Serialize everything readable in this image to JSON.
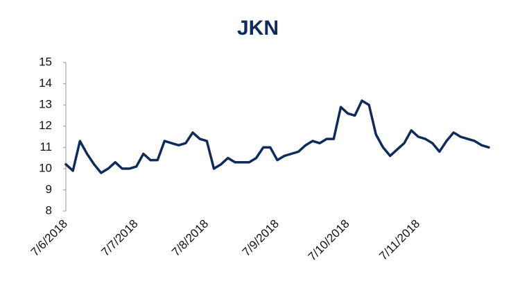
{
  "chart_data": {
    "type": "line",
    "title": "JKN",
    "categories": [
      "7/6/2018",
      null,
      null,
      null,
      null,
      null,
      null,
      null,
      null,
      null,
      "7/7/2018",
      null,
      null,
      null,
      null,
      null,
      null,
      null,
      null,
      null,
      "7/8/2018",
      null,
      null,
      null,
      null,
      null,
      null,
      null,
      null,
      null,
      "7/9/2018",
      null,
      null,
      null,
      null,
      null,
      null,
      null,
      null,
      null,
      "7/10/2018",
      null,
      null,
      null,
      null,
      null,
      null,
      null,
      null,
      null,
      "7/11/2018",
      null,
      null,
      null,
      null,
      null,
      null,
      null,
      null,
      null,
      null
    ],
    "series": [
      {
        "name": "JKN",
        "color": "#0f2b5b",
        "values": [
          10.2,
          9.9,
          11.3,
          10.7,
          10.2,
          9.8,
          10.0,
          10.3,
          10.0,
          10.0,
          10.1,
          10.7,
          10.4,
          10.4,
          11.3,
          11.2,
          11.1,
          11.2,
          11.7,
          11.4,
          11.3,
          10.0,
          10.2,
          10.5,
          10.3,
          10.3,
          10.3,
          10.5,
          11.0,
          11.0,
          10.4,
          10.6,
          10.7,
          10.8,
          11.1,
          11.3,
          11.2,
          11.4,
          11.4,
          12.9,
          12.6,
          12.5,
          13.2,
          13.0,
          11.6,
          11.0,
          10.6,
          10.9,
          11.2,
          11.8,
          11.5,
          11.4,
          11.2,
          10.8,
          11.3,
          11.7,
          11.5,
          11.4,
          11.3,
          11.1,
          11.0
        ]
      }
    ],
    "ylim": [
      8,
      15
    ],
    "yticks": [
      8,
      9,
      10,
      11,
      12,
      13,
      14,
      15
    ],
    "grid": false
  }
}
